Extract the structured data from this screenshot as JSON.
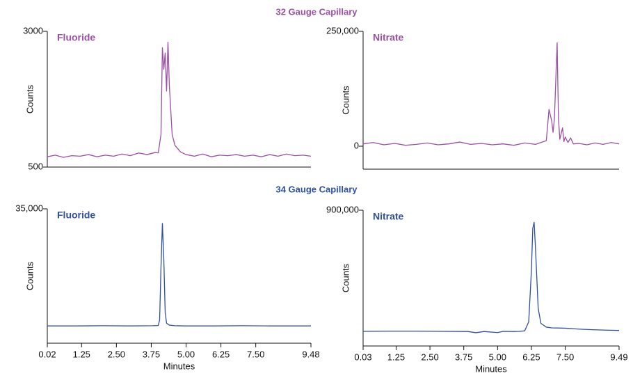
{
  "headings": [
    "32 Gauge Capillary",
    "34 Gauge Capillary"
  ],
  "chart_data": [
    {
      "type": "line",
      "ylabel": "Counts",
      "xlim": [
        0.02,
        9.48
      ],
      "ylim": [
        500,
        3000
      ],
      "yticks": [
        500,
        3000
      ],
      "x": [
        0.02,
        0.3,
        0.6,
        0.9,
        1.2,
        1.5,
        1.8,
        2.1,
        2.4,
        2.7,
        3.0,
        3.3,
        3.6,
        3.9,
        4.0,
        4.1,
        4.15,
        4.2,
        4.25,
        4.3,
        4.35,
        4.4,
        4.5,
        4.6,
        4.8,
        5.0,
        5.3,
        5.6,
        5.9,
        6.2,
        6.5,
        6.8,
        7.1,
        7.4,
        7.7,
        8.0,
        8.3,
        8.6,
        8.9,
        9.2,
        9.48
      ],
      "series": [
        {
          "name": "Fluoride",
          "color": "#9b4fa5",
          "values": [
            690,
            720,
            680,
            710,
            700,
            730,
            690,
            720,
            700,
            740,
            710,
            760,
            730,
            770,
            760,
            1100,
            2700,
            2300,
            2600,
            1900,
            2800,
            2000,
            1100,
            900,
            780,
            730,
            700,
            740,
            690,
            720,
            710,
            730,
            700,
            720,
            690,
            730,
            700,
            740,
            710,
            720,
            700
          ]
        }
      ]
    },
    {
      "type": "line",
      "ylabel": "Counts",
      "xlim": [
        0.03,
        9.49
      ],
      "ylim": [
        -50000,
        250000
      ],
      "yticks": [
        0,
        {
          "value": 250000,
          "label": "250,000"
        }
      ],
      "x": [
        0.03,
        0.4,
        0.8,
        1.2,
        1.6,
        2.0,
        2.4,
        2.8,
        3.2,
        3.6,
        4.0,
        4.4,
        4.8,
        5.2,
        5.6,
        6.0,
        6.4,
        6.8,
        6.9,
        7.0,
        7.05,
        7.1,
        7.2,
        7.25,
        7.3,
        7.4,
        7.45,
        7.5,
        7.6,
        7.7,
        7.8,
        8.0,
        8.3,
        8.6,
        8.9,
        9.2,
        9.49
      ],
      "series": [
        {
          "name": "Nitrate",
          "color": "#9b4fa5",
          "values": [
            5000,
            8000,
            3000,
            6000,
            2000,
            4000,
            7000,
            3000,
            5000,
            9000,
            4000,
            6000,
            3000,
            5000,
            2000,
            7000,
            4000,
            12000,
            80000,
            55000,
            30000,
            60000,
            225000,
            60000,
            15000,
            40000,
            10000,
            20000,
            8000,
            18000,
            5000,
            6000,
            3000,
            7000,
            4000,
            8000,
            5000
          ]
        }
      ]
    },
    {
      "type": "line",
      "ylabel": "Counts",
      "xlabel": "Minutes",
      "xlim": [
        0.02,
        9.48
      ],
      "ylim": [
        0,
        35000
      ],
      "yticks": [
        {
          "value": 35000,
          "label": "35,000"
        }
      ],
      "xticks": [
        0.02,
        1.25,
        {
          "value": 2.5,
          "label": "2.50"
        },
        3.75,
        {
          "value": 5,
          "label": "5.00"
        },
        6.25,
        {
          "value": 7.5,
          "label": "7.50"
        },
        9.48
      ],
      "x": [
        0.02,
        1.0,
        2.0,
        3.0,
        3.8,
        4.0,
        4.05,
        4.1,
        4.15,
        4.2,
        4.25,
        4.3,
        4.4,
        4.6,
        5.0,
        6.0,
        7.0,
        8.0,
        9.0,
        9.48
      ],
      "series": [
        {
          "name": "Fluoride",
          "color": "#2e4fa3",
          "values": [
            4500,
            4500,
            4550,
            4500,
            4550,
            4600,
            6000,
            20000,
            31200,
            22000,
            8000,
            5200,
            4700,
            4550,
            4500,
            4500,
            4550,
            4500,
            4500,
            4500
          ]
        }
      ]
    },
    {
      "type": "line",
      "ylabel": "Counts",
      "xlabel": "Minutes",
      "xlim": [
        0.03,
        9.49
      ],
      "ylim": [
        0,
        900000
      ],
      "yticks": [
        {
          "value": 900000,
          "label": "900,000"
        }
      ],
      "xticks": [
        0.03,
        1.25,
        {
          "value": 2.5,
          "label": "2.50"
        },
        3.75,
        {
          "value": 5,
          "label": "5.00"
        },
        6.25,
        {
          "value": 7.5,
          "label": "7.50"
        },
        9.49
      ],
      "x": [
        0.03,
        1.0,
        2.0,
        3.0,
        3.9,
        4.2,
        4.5,
        5.0,
        5.2,
        5.6,
        5.8,
        6.0,
        6.15,
        6.25,
        6.3,
        6.35,
        6.4,
        6.5,
        6.6,
        6.8,
        7.0,
        7.5,
        8.0,
        8.5,
        9.0,
        9.49
      ],
      "series": [
        {
          "name": "Nitrate",
          "color": "#2e4fa3",
          "values": [
            97000,
            98000,
            98000,
            97000,
            96000,
            88000,
            96000,
            89000,
            97000,
            96000,
            97000,
            100000,
            160000,
            500000,
            780000,
            820000,
            650000,
            250000,
            150000,
            125000,
            120000,
            118000,
            112000,
            108000,
            105000,
            103000
          ]
        }
      ]
    }
  ]
}
